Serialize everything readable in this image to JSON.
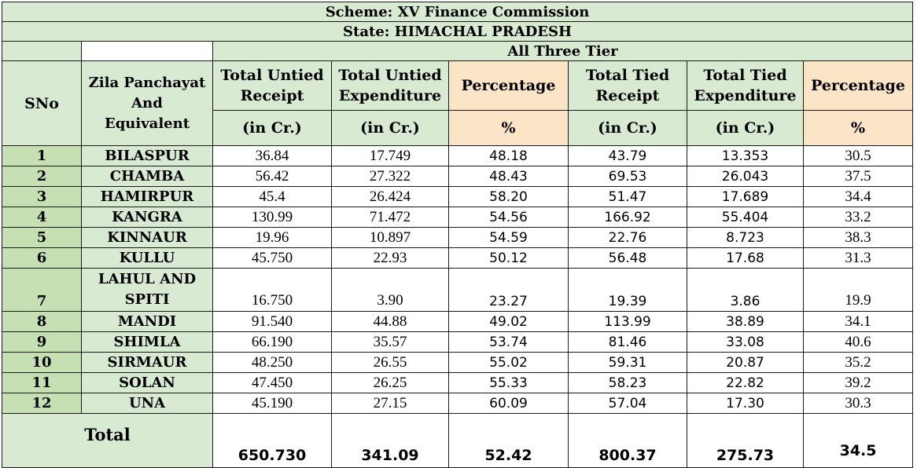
{
  "header": {
    "scheme": "Scheme: XV Finance Commission",
    "state": "State: HIMACHAL PRADESH",
    "tier": "All Three Tier"
  },
  "columns": {
    "sno": "SNo",
    "zila_line1": "Zila Panchayat",
    "zila_line2": "And",
    "zila_line3": "Equivalent",
    "untied_receipt_1": "Total Untied",
    "untied_receipt_2": "Receipt",
    "untied_exp_1": "Total Untied",
    "untied_exp_2": "Expenditure",
    "percentage_1": "Percentage",
    "tied_receipt_1": "Total Tied",
    "tied_receipt_2": "Receipt",
    "tied_exp_1": "Total Tied",
    "tied_exp_2": "Expenditure",
    "percentage_2": "Percentage"
  },
  "units": [
    "(in Cr.)",
    "(in Cr.)",
    "%",
    "(in Cr.)",
    "(in Cr.)",
    "%"
  ],
  "rows": [
    {
      "sno": "1",
      "name": "BILASPUR",
      "untied_receipt": "36.84",
      "untied_exp": "17.749",
      "pct1": "48.18",
      "tied_receipt": "43.79",
      "tied_exp": "13.353",
      "pct2": "30.5"
    },
    {
      "sno": "2",
      "name": "CHAMBA",
      "untied_receipt": "56.42",
      "untied_exp": "27.322",
      "pct1": "48.43",
      "tied_receipt": "69.53",
      "tied_exp": "26.043",
      "pct2": "37.5"
    },
    {
      "sno": "3",
      "name": "HAMIRPUR",
      "untied_receipt": "45.4",
      "untied_exp": "26.424",
      "pct1": "58.20",
      "tied_receipt": "51.47",
      "tied_exp": "17.689",
      "pct2": "34.4"
    },
    {
      "sno": "4",
      "name": "KANGRA",
      "untied_receipt": "130.99",
      "untied_exp": "71.472",
      "pct1": "54.56",
      "tied_receipt": "166.92",
      "tied_exp": "55.404",
      "pct2": "33.2"
    },
    {
      "sno": "5",
      "name": "KINNAUR",
      "untied_receipt": "19.96",
      "untied_exp": "10.897",
      "pct1": "54.59",
      "tied_receipt": "22.76",
      "tied_exp": "8.723",
      "pct2": "38.3"
    },
    {
      "sno": "6",
      "name": "KULLU",
      "untied_receipt": "45.750",
      "untied_exp": "22.93",
      "pct1": "50.12",
      "tied_receipt": "56.48",
      "tied_exp": "17.68",
      "pct2": "31.3"
    },
    {
      "sno": "7",
      "name_line1": "LAHUL AND",
      "name_line2": "SPITI",
      "untied_receipt": "16.750",
      "untied_exp": "3.90",
      "pct1": "23.27",
      "tied_receipt": "19.39",
      "tied_exp": "3.86",
      "pct2": "19.9"
    },
    {
      "sno": "8",
      "name": "MANDI",
      "untied_receipt": "91.540",
      "untied_exp": "44.88",
      "pct1": "49.02",
      "tied_receipt": "113.99",
      "tied_exp": "38.89",
      "pct2": "34.1"
    },
    {
      "sno": "9",
      "name": "SHIMLA",
      "untied_receipt": "66.190",
      "untied_exp": "35.57",
      "pct1": "53.74",
      "tied_receipt": "81.46",
      "tied_exp": "33.08",
      "pct2": "40.6"
    },
    {
      "sno": "10",
      "name": "SIRMAUR",
      "untied_receipt": "48.250",
      "untied_exp": "26.55",
      "pct1": "55.02",
      "tied_receipt": "59.31",
      "tied_exp": "20.87",
      "pct2": "35.2"
    },
    {
      "sno": "11",
      "name": "SOLAN",
      "untied_receipt": "47.450",
      "untied_exp": "26.25",
      "pct1": "55.33",
      "tied_receipt": "58.23",
      "tied_exp": "22.82",
      "pct2": "39.2"
    },
    {
      "sno": "12",
      "name": "UNA",
      "untied_receipt": "45.190",
      "untied_exp": "27.15",
      "pct1": "60.09",
      "tied_receipt": "57.04",
      "tied_exp": "17.30",
      "pct2": "30.3"
    }
  ],
  "total": {
    "label": "Total",
    "untied_receipt": "650.730",
    "untied_exp": "341.09",
    "pct1": "52.42",
    "tied_receipt": "800.37",
    "tied_exp": "275.73",
    "pct2": "34.5"
  },
  "colors": {
    "header_green": "#d9ead3",
    "sno_green": "#c6e0b4",
    "percentage_peach": "#fce4c7"
  }
}
